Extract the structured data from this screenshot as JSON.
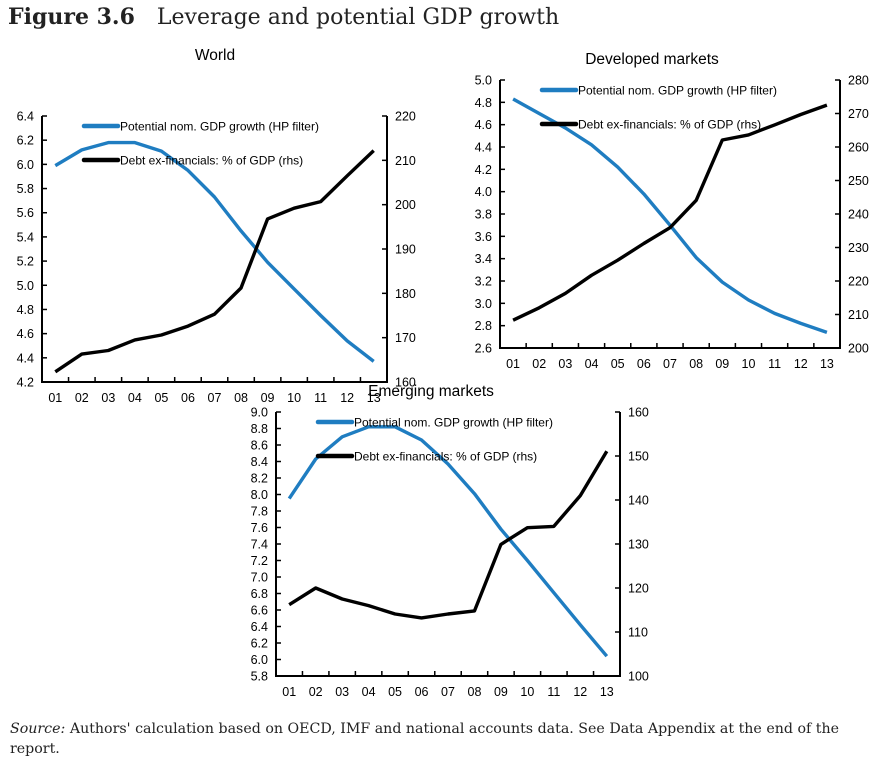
{
  "figure": {
    "number": "Figure 3.6",
    "title": "Leverage and potential GDP growth"
  },
  "source": {
    "label": "Source:",
    "text": "Authors' calculation based on OECD, IMF and national accounts data. See Data Appendix at the end of the report."
  },
  "colors": {
    "gdp_growth": "#1f7dc1",
    "debt": "#000000"
  },
  "chart_data": [
    {
      "type": "line",
      "title": "World",
      "categories": [
        "01",
        "02",
        "03",
        "04",
        "05",
        "06",
        "07",
        "08",
        "09",
        "10",
        "11",
        "12",
        "13"
      ],
      "xlabel": "",
      "ylabel": "",
      "ylim": [
        4.2,
        6.4
      ],
      "yticks": [
        "6.4",
        "6.2",
        "6.0",
        "5.8",
        "5.6",
        "5.4",
        "5.2",
        "5.0",
        "4.8",
        "4.6",
        "4.4",
        "4.2"
      ],
      "y2lim": [
        160,
        220
      ],
      "y2ticks": [
        "220",
        "210",
        "200",
        "190",
        "180",
        "170",
        "160"
      ],
      "legend_position": "top-left",
      "grid": false,
      "series": [
        {
          "name": "Potential nom. GDP growth (HP filter)",
          "axis": "left",
          "color": "#1f7dc1",
          "values": [
            5.99,
            6.12,
            6.18,
            6.18,
            6.11,
            5.95,
            5.73,
            5.45,
            5.19,
            4.97,
            4.75,
            4.54,
            4.37
          ]
        },
        {
          "name": "Debt ex-financials: % of GDP (rhs)",
          "axis": "right",
          "color": "#000000",
          "values": [
            162.3,
            166.3,
            167.1,
            169.5,
            170.6,
            172.6,
            175.3,
            181.2,
            196.8,
            199.2,
            200.7,
            206.5,
            212.2
          ]
        }
      ]
    },
    {
      "type": "line",
      "title": "Developed markets",
      "categories": [
        "01",
        "02",
        "03",
        "04",
        "05",
        "06",
        "07",
        "08",
        "09",
        "10",
        "11",
        "12",
        "13"
      ],
      "xlabel": "",
      "ylabel": "",
      "ylim": [
        2.6,
        5.0
      ],
      "yticks": [
        "5.0",
        "4.8",
        "4.6",
        "4.4",
        "4.2",
        "4.0",
        "3.8",
        "3.6",
        "3.4",
        "3.2",
        "3.0",
        "2.8",
        "2.6"
      ],
      "y2lim": [
        200,
        280
      ],
      "y2ticks": [
        "280",
        "270",
        "260",
        "250",
        "240",
        "230",
        "220",
        "210",
        "200"
      ],
      "legend_position": "top-left",
      "grid": false,
      "series": [
        {
          "name": "Potential nom. GDP growth (HP filter)",
          "axis": "left",
          "color": "#1f7dc1",
          "values": [
            4.83,
            4.7,
            4.57,
            4.42,
            4.22,
            3.98,
            3.7,
            3.41,
            3.19,
            3.03,
            2.91,
            2.82,
            2.74
          ]
        },
        {
          "name": "Debt ex-financials: % of GDP (rhs)",
          "axis": "right",
          "color": "#000000",
          "values": [
            208.3,
            212.0,
            216.3,
            221.7,
            226.2,
            231.2,
            235.9,
            244.1,
            262.1,
            263.6,
            266.6,
            269.7,
            272.5
          ]
        }
      ]
    },
    {
      "type": "line",
      "title": "Emerging markets",
      "categories": [
        "01",
        "02",
        "03",
        "04",
        "05",
        "06",
        "07",
        "08",
        "09",
        "10",
        "11",
        "12",
        "13"
      ],
      "xlabel": "",
      "ylabel": "",
      "ylim": [
        5.8,
        9.0
      ],
      "yticks": [
        "9.0",
        "8.8",
        "8.6",
        "8.4",
        "8.2",
        "8.0",
        "7.8",
        "7.6",
        "7.4",
        "7.2",
        "7.0",
        "6.8",
        "6.6",
        "6.4",
        "6.2",
        "6.0",
        "5.8"
      ],
      "y2lim": [
        100,
        160
      ],
      "y2ticks": [
        "160",
        "150",
        "140",
        "130",
        "120",
        "110",
        "100"
      ],
      "legend_position": "top-left",
      "grid": false,
      "series": [
        {
          "name": "Potential nom. GDP growth (HP filter)",
          "axis": "left",
          "color": "#1f7dc1",
          "values": [
            7.95,
            8.43,
            8.7,
            8.82,
            8.82,
            8.66,
            8.37,
            8.01,
            7.58,
            7.2,
            6.81,
            6.42,
            6.04
          ]
        },
        {
          "name": "Debt ex-financials: % of GDP (rhs)",
          "axis": "right",
          "color": "#000000",
          "values": [
            116.2,
            120.0,
            117.5,
            116.0,
            114.1,
            113.2,
            114.1,
            114.8,
            129.9,
            133.7,
            134.0,
            141.0,
            151.1
          ]
        }
      ]
    }
  ]
}
